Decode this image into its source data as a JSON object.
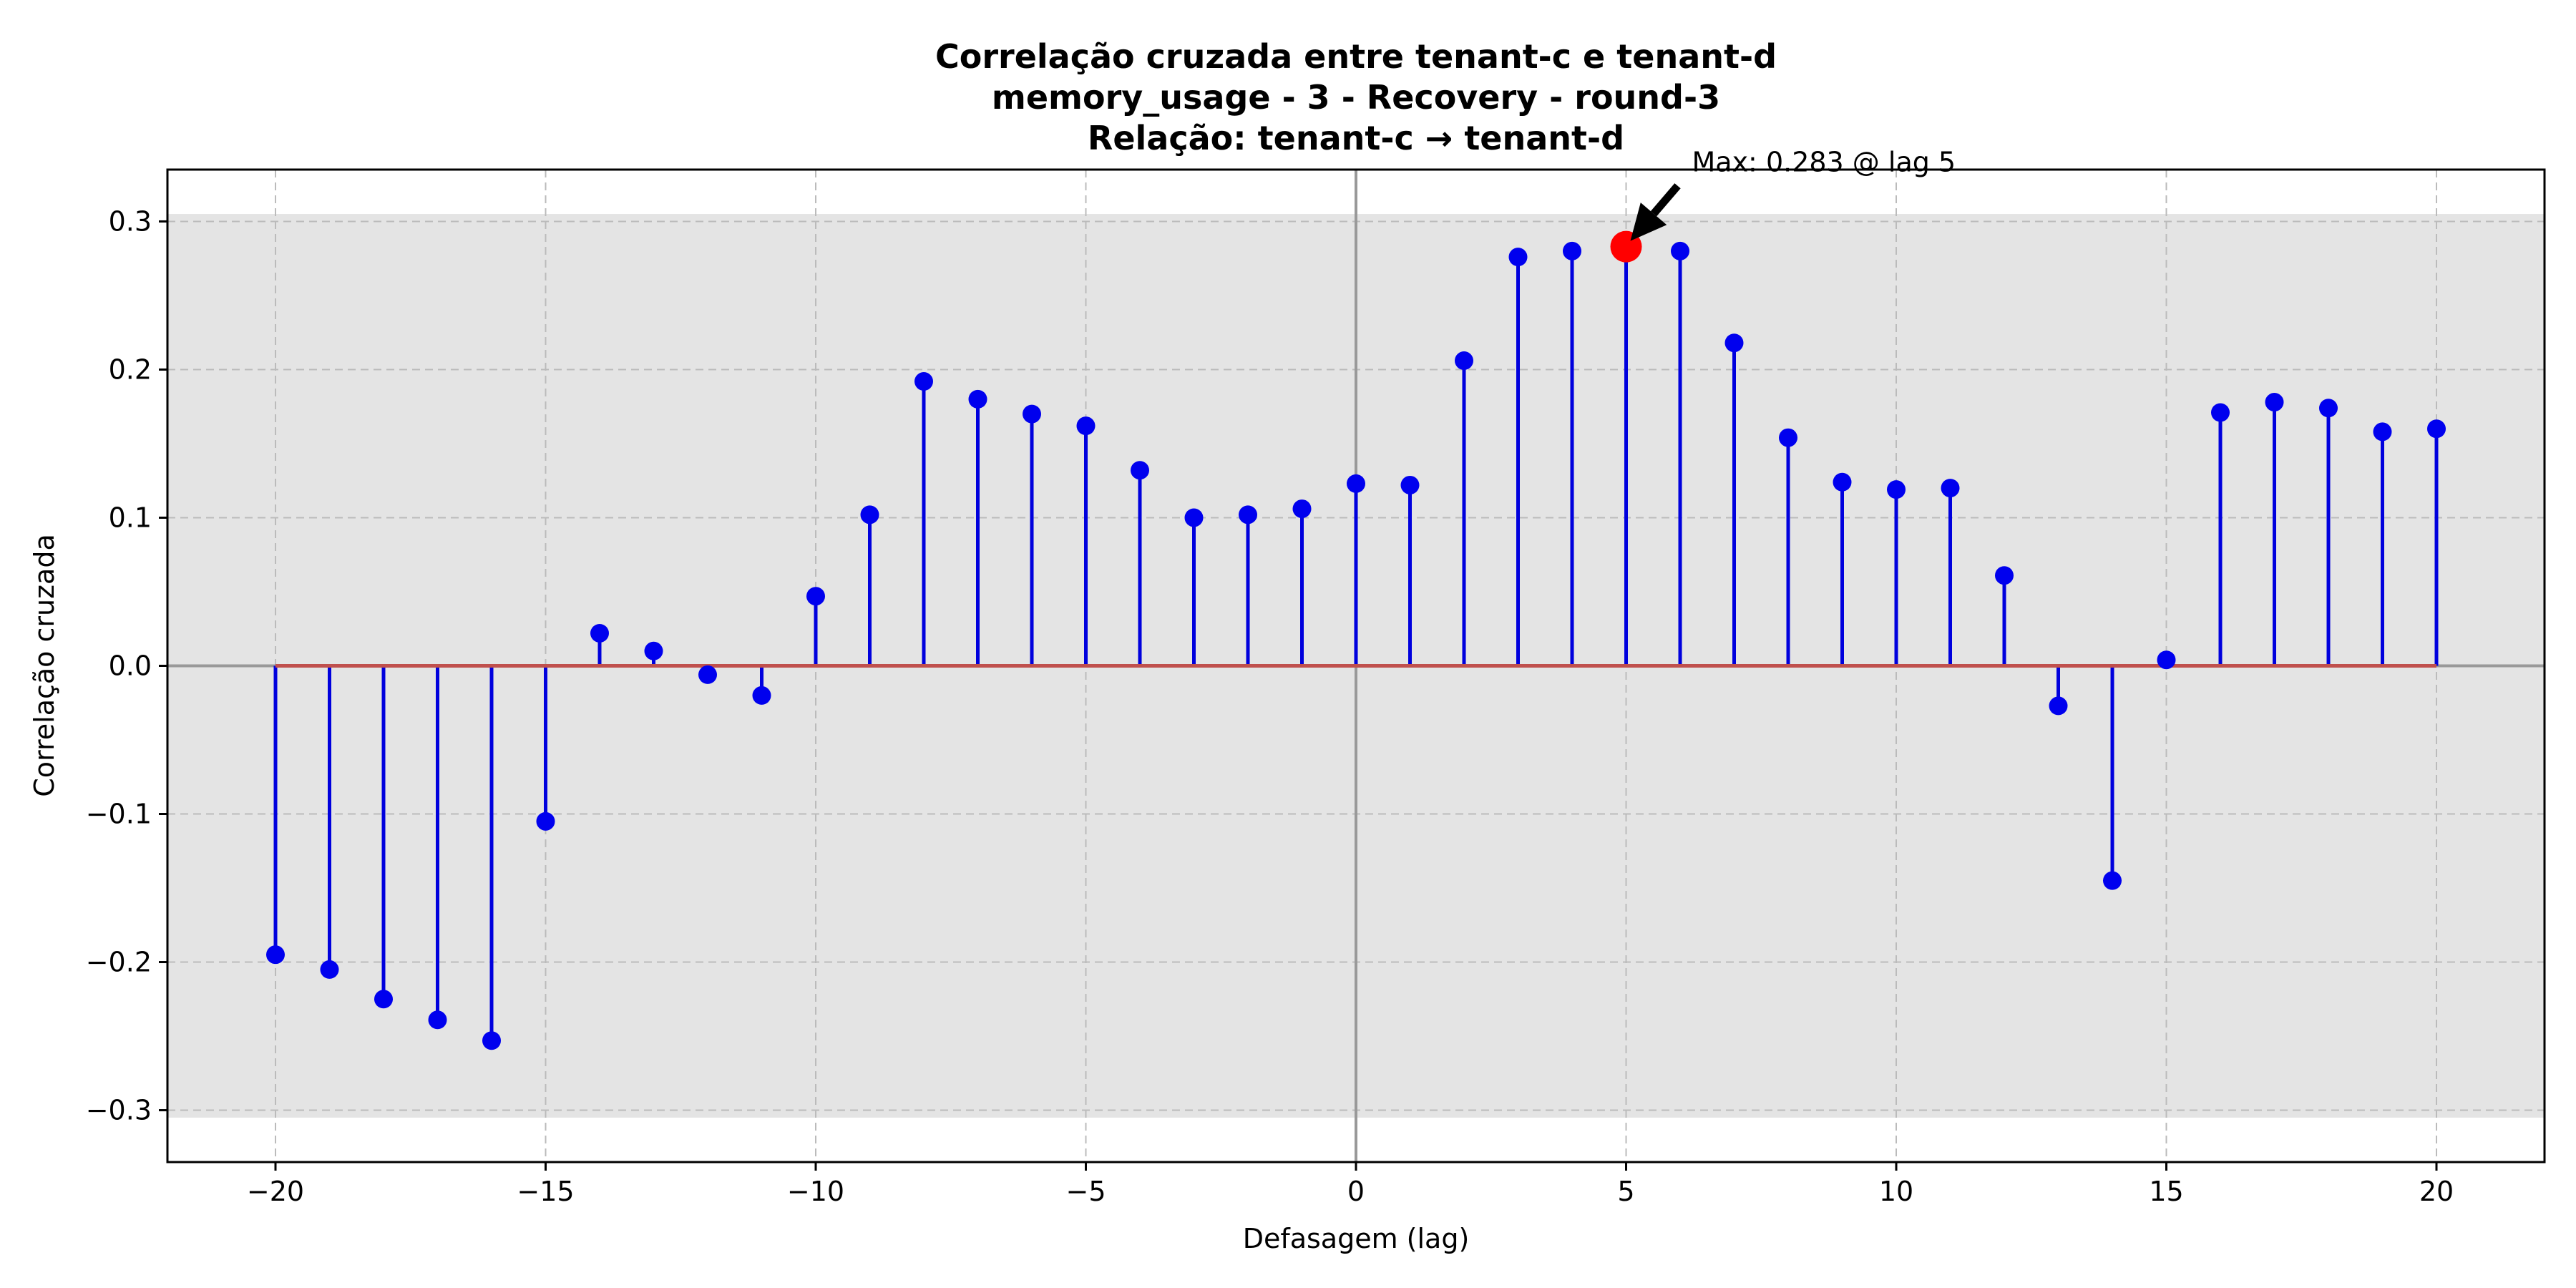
{
  "chart_data": {
    "type": "stem",
    "title": "Correlação cruzada entre tenant-c e tenant-d",
    "subtitle": "memory_usage - 3 - Recovery - round-3",
    "subtitle2": "Relação: tenant-c → tenant-d",
    "xlabel": "Defasagem (lag)",
    "ylabel": "Correlação cruzada",
    "xlim": [
      -22,
      22
    ],
    "ylim": [
      -0.335,
      0.335
    ],
    "xticks": [
      -20,
      -15,
      -10,
      -5,
      0,
      5,
      10,
      15,
      20
    ],
    "xtick_labels": [
      "−20",
      "−15",
      "−10",
      "−5",
      "0",
      "5",
      "10",
      "15",
      "20"
    ],
    "yticks": [
      -0.3,
      -0.2,
      -0.1,
      0.0,
      0.1,
      0.2,
      0.3
    ],
    "ytick_labels": [
      "−0.3",
      "−0.2",
      "−0.1",
      "0.0",
      "0.1",
      "0.2",
      "0.3"
    ],
    "shaded_band": [
      -0.305,
      0.305
    ],
    "grid": true,
    "x": [
      -20,
      -19,
      -18,
      -17,
      -16,
      -15,
      -14,
      -13,
      -12,
      -11,
      -10,
      -9,
      -8,
      -7,
      -6,
      -5,
      -4,
      -3,
      -2,
      -1,
      0,
      1,
      2,
      3,
      4,
      5,
      6,
      7,
      8,
      9,
      10,
      11,
      12,
      13,
      14,
      15,
      16,
      17,
      18,
      19,
      20
    ],
    "values": [
      -0.195,
      -0.205,
      -0.225,
      -0.239,
      -0.253,
      -0.105,
      0.022,
      0.01,
      -0.006,
      -0.02,
      0.047,
      0.102,
      0.192,
      0.18,
      0.17,
      0.162,
      0.132,
      0.1,
      0.102,
      0.106,
      0.123,
      0.122,
      0.206,
      0.276,
      0.28,
      0.283,
      0.28,
      0.218,
      0.154,
      0.124,
      0.119,
      0.12,
      0.061,
      -0.027,
      -0.145,
      0.004,
      0.171,
      0.178,
      0.174,
      0.158,
      0.16
    ],
    "max_point": {
      "lag": 5,
      "value": 0.283
    },
    "annotation": "Max: 0.283 @ lag 5",
    "colors": {
      "stem": "#0000dd",
      "marker": "#0000ee",
      "baseline": "#c0504d",
      "max_marker": "#ff0000",
      "band": "#e4e4e4",
      "zero_lines": "#999999",
      "grid": "#bbbbbb"
    }
  }
}
